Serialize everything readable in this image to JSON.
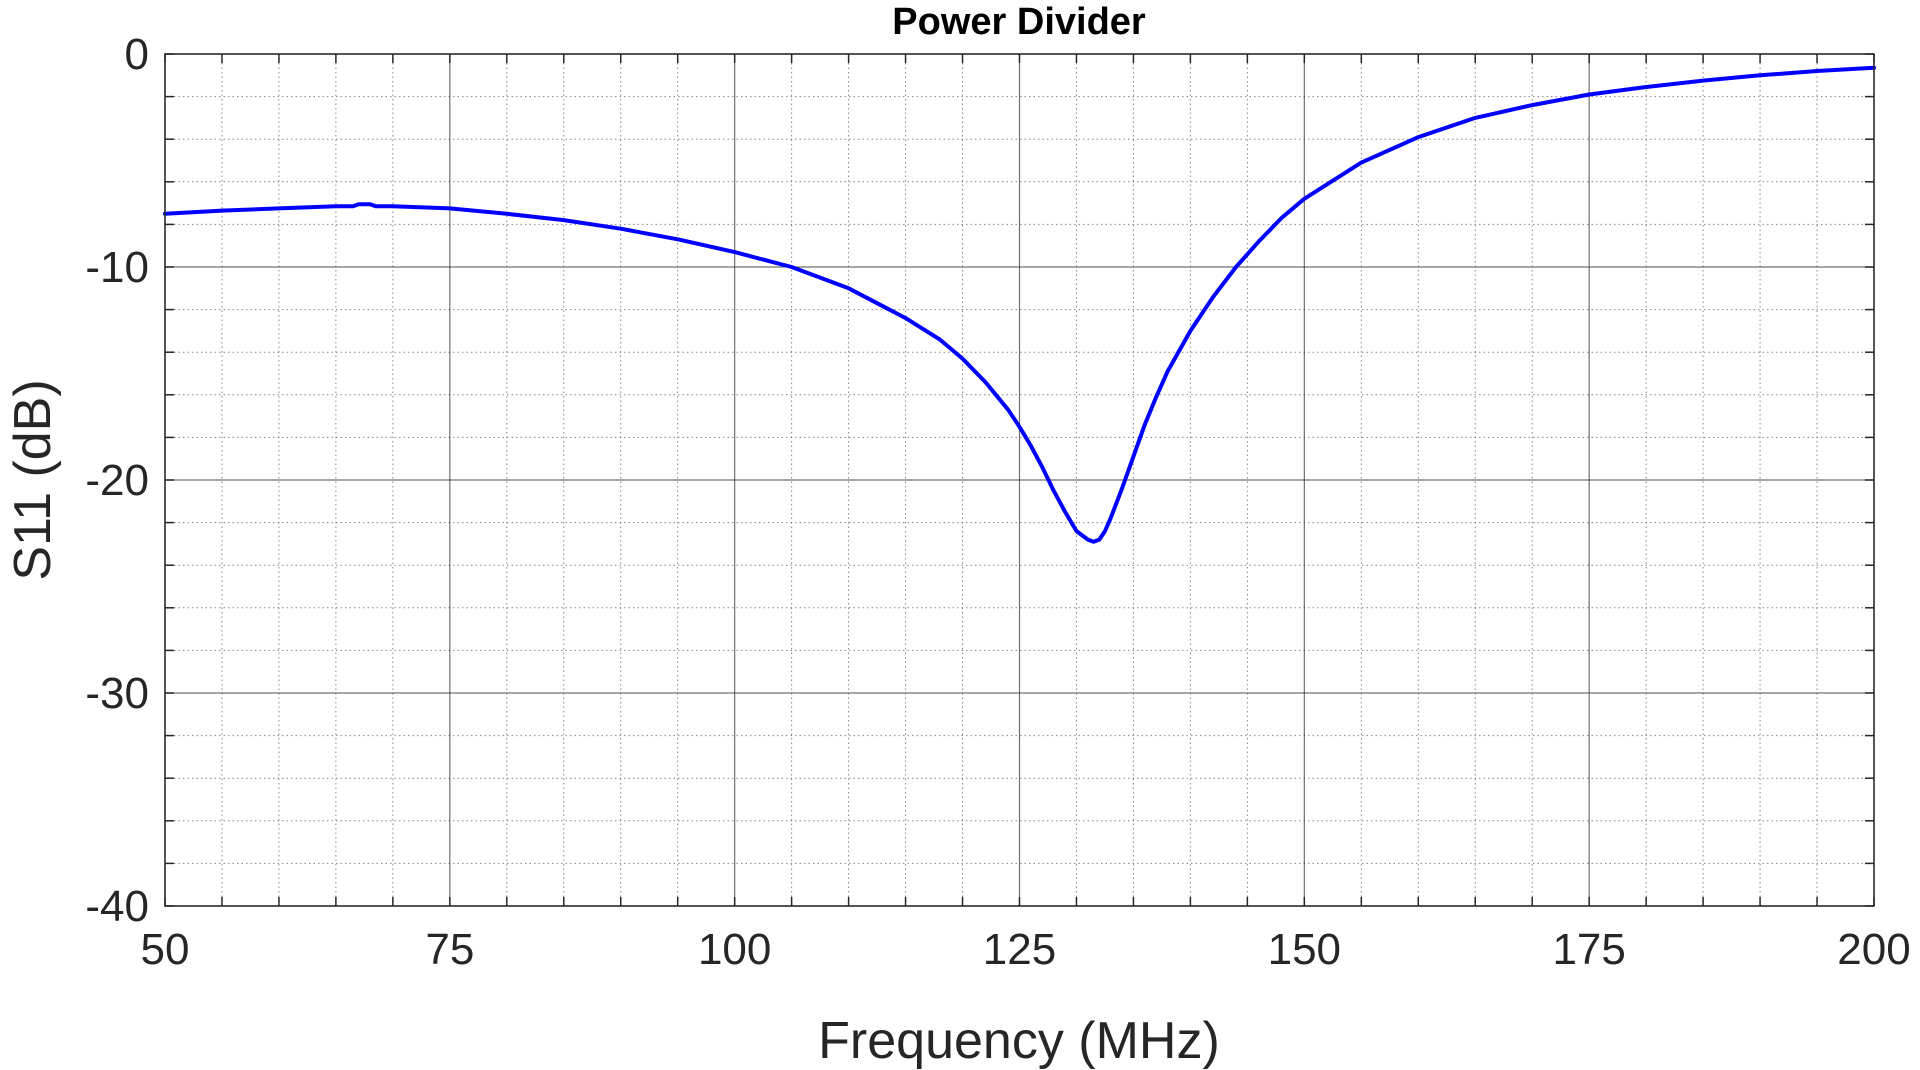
{
  "chart_data": {
    "type": "line",
    "title": "Power Divider",
    "xlabel": "Frequency (MHz)",
    "ylabel": "S11 (dB)",
    "xlim": [
      50,
      200
    ],
    "ylim": [
      -40,
      0
    ],
    "x_ticks": [
      50,
      75,
      100,
      125,
      150,
      175,
      200
    ],
    "x_tick_labels": [
      "50",
      "75",
      "100",
      "125",
      "150",
      "175",
      "200"
    ],
    "y_ticks": [
      0,
      -10,
      -20,
      -30,
      -40
    ],
    "y_tick_labels": [
      "0",
      "-10",
      "-20",
      "-30",
      "-40"
    ],
    "x_minor_step": 5,
    "y_minor_step": 2,
    "grid": true,
    "minor_grid": true,
    "series": [
      {
        "color": "#0000ff",
        "x": [
          50,
          55,
          60,
          65,
          66.5,
          67,
          68,
          68.5,
          70,
          75,
          80,
          85,
          90,
          95,
          100,
          105,
          110,
          115,
          118,
          120,
          122,
          124,
          125,
          126,
          127,
          128,
          129,
          130,
          131,
          131.5,
          132,
          132.5,
          133,
          134,
          135,
          136,
          137,
          138,
          140,
          142,
          144,
          146,
          148,
          150,
          155,
          160,
          165,
          170,
          175,
          180,
          185,
          190,
          195,
          200
        ],
        "y": [
          -7.5,
          -7.35,
          -7.25,
          -7.15,
          -7.15,
          -7.05,
          -7.05,
          -7.15,
          -7.15,
          -7.25,
          -7.5,
          -7.8,
          -8.2,
          -8.7,
          -9.3,
          -10.0,
          -11.0,
          -12.4,
          -13.4,
          -14.3,
          -15.4,
          -16.7,
          -17.5,
          -18.4,
          -19.4,
          -20.5,
          -21.5,
          -22.4,
          -22.8,
          -22.9,
          -22.8,
          -22.4,
          -21.8,
          -20.4,
          -18.9,
          -17.4,
          -16.1,
          -14.9,
          -13.0,
          -11.4,
          -10.0,
          -8.8,
          -7.7,
          -6.8,
          -5.1,
          -3.9,
          -3.0,
          -2.4,
          -1.9,
          -1.55,
          -1.25,
          -1.0,
          -0.8,
          -0.65
        ]
      }
    ]
  }
}
